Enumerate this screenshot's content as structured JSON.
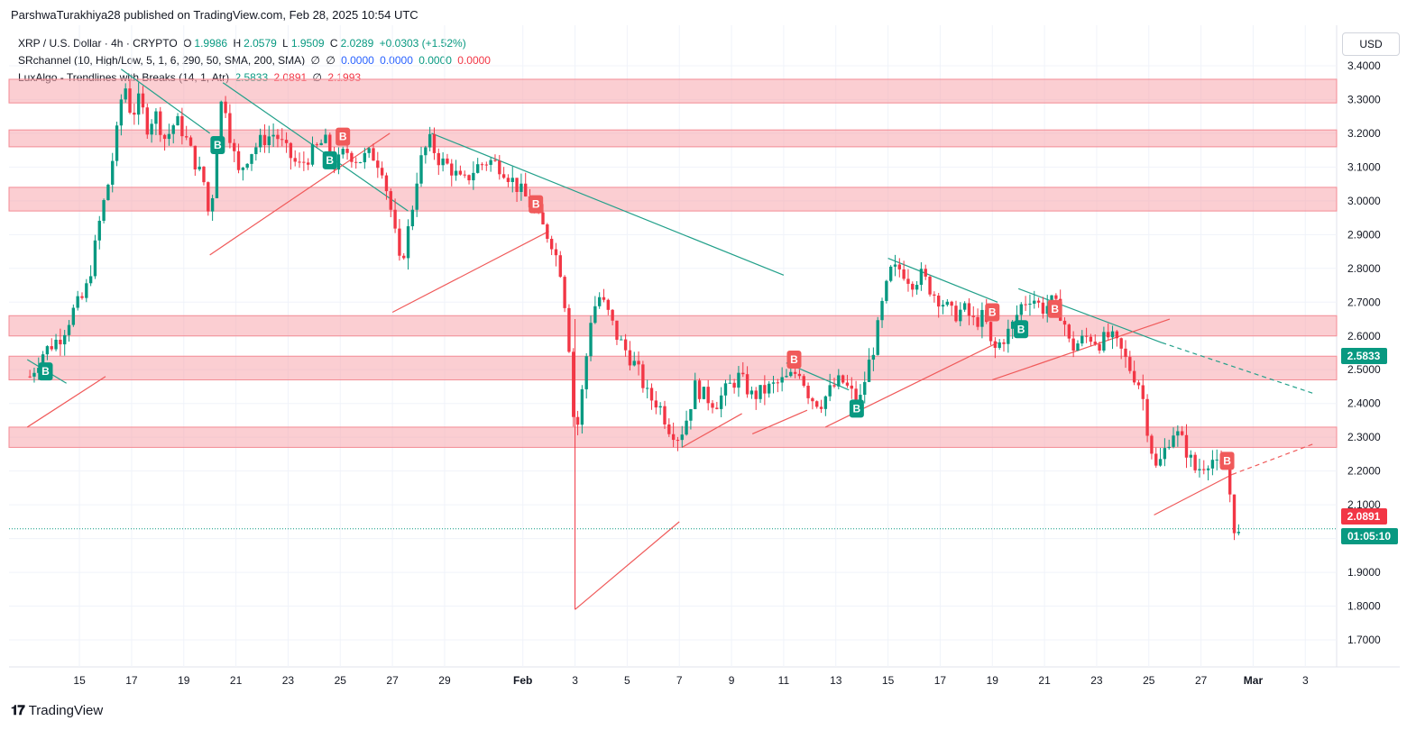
{
  "publisher_line": "ParshwaTurakhiya28 published on TradingView.com, Feb 28, 2025 10:54 UTC",
  "legend": {
    "symbol": "XRP / U.S. Dollar · 4h · CRYPTO",
    "o_label": "O",
    "o": "1.9986",
    "h_label": "H",
    "h": "2.0579",
    "l_label": "L",
    "l": "1.9509",
    "c_label": "C",
    "c": "2.0289",
    "change": "+0.0303 (+1.52%)",
    "sr_name": "SRchannel (10, High/Low, 5, 1, 6, 290, 50, SMA, 200, SMA)",
    "sr_n1": "∅",
    "sr_n2": "∅",
    "sr_v1": "0.0000",
    "sr_v2": "0.0000",
    "sr_v3": "0.0000",
    "sr_v4": "0.0000",
    "lux_name": "LuxAlgo - Trendlines with Breaks (14, 1, Atr)",
    "lux_v1": "2.5833",
    "lux_v2": "2.0891",
    "lux_n": "∅",
    "lux_v3": "2.1993"
  },
  "currency_button": "USD",
  "price_tags": {
    "tag1": "2.5833",
    "tag2": "2.0891",
    "countdown": "01:05:10"
  },
  "brand": "TradingView",
  "colors": {
    "up": "#089981",
    "down": "#f23645",
    "zone": "#f7a6ad",
    "zone_border": "#f38b94",
    "downtrend": "#22a08a",
    "uptrend": "#f05a5a",
    "grid": "#f0f3fa"
  },
  "chart_data": {
    "type": "candlestick",
    "title": "XRP / U.S. Dollar · 4h · CRYPTO",
    "ylim": [
      1.62,
      3.52
    ],
    "y_ticks": [
      "3.4000",
      "3.3000",
      "3.2000",
      "3.1000",
      "3.0000",
      "2.9000",
      "2.8000",
      "2.7000",
      "2.6000",
      "2.5000",
      "2.4000",
      "2.3000",
      "2.2000",
      "2.1000",
      "2.0000",
      "1.9000",
      "1.8000",
      "1.7000"
    ],
    "x_ticks": [
      {
        "label": "15",
        "day": 15
      },
      {
        "label": "17",
        "day": 17
      },
      {
        "label": "19",
        "day": 19
      },
      {
        "label": "21",
        "day": 21
      },
      {
        "label": "23",
        "day": 23
      },
      {
        "label": "25",
        "day": 25
      },
      {
        "label": "27",
        "day": 27
      },
      {
        "label": "29",
        "day": 29
      },
      {
        "label": "Feb",
        "day": 32
      },
      {
        "label": "3",
        "day": 34
      },
      {
        "label": "5",
        "day": 36
      },
      {
        "label": "7",
        "day": 38
      },
      {
        "label": "9",
        "day": 40
      },
      {
        "label": "11",
        "day": 42
      },
      {
        "label": "13",
        "day": 44
      },
      {
        "label": "15",
        "day": 46
      },
      {
        "label": "17",
        "day": 48
      },
      {
        "label": "19",
        "day": 50
      },
      {
        "label": "21",
        "day": 52
      },
      {
        "label": "23",
        "day": 54
      },
      {
        "label": "25",
        "day": 56
      },
      {
        "label": "27",
        "day": 58
      },
      {
        "label": "Mar",
        "day": 60
      },
      {
        "label": "3",
        "day": 62
      }
    ],
    "resistance_zones": [
      [
        3.29,
        3.36
      ],
      [
        3.16,
        3.21
      ],
      [
        2.97,
        3.04
      ],
      [
        2.6,
        2.66
      ],
      [
        2.47,
        2.54
      ],
      [
        2.27,
        2.33
      ]
    ],
    "close_price": 2.0289,
    "path": [
      [
        13.1,
        2.48
      ],
      [
        13.6,
        2.55
      ],
      [
        14.3,
        2.6
      ],
      [
        14.8,
        2.68
      ],
      [
        15.2,
        2.72
      ],
      [
        15.5,
        2.82
      ],
      [
        15.8,
        2.95
      ],
      [
        16.1,
        3.05
      ],
      [
        16.4,
        3.18
      ],
      [
        16.7,
        3.36
      ],
      [
        17.0,
        3.25
      ],
      [
        17.3,
        3.3
      ],
      [
        17.6,
        3.22
      ],
      [
        17.9,
        3.26
      ],
      [
        18.3,
        3.18
      ],
      [
        18.7,
        3.24
      ],
      [
        19.0,
        3.2
      ],
      [
        19.4,
        3.12
      ],
      [
        19.8,
        3.05
      ],
      [
        20.0,
        2.93
      ],
      [
        20.3,
        3.2
      ],
      [
        20.5,
        3.33
      ],
      [
        20.8,
        3.18
      ],
      [
        21.1,
        3.08
      ],
      [
        21.5,
        3.14
      ],
      [
        22.0,
        3.18
      ],
      [
        22.5,
        3.2
      ],
      [
        22.9,
        3.15
      ],
      [
        23.4,
        3.1
      ],
      [
        23.9,
        3.14
      ],
      [
        24.4,
        3.18
      ],
      [
        24.8,
        3.1
      ],
      [
        25.2,
        3.15
      ],
      [
        25.7,
        3.12
      ],
      [
        26.2,
        3.14
      ],
      [
        26.6,
        3.1
      ],
      [
        27.0,
        2.95
      ],
      [
        27.3,
        2.8
      ],
      [
        27.7,
        2.95
      ],
      [
        28.0,
        3.1
      ],
      [
        28.4,
        3.18
      ],
      [
        28.8,
        3.12
      ],
      [
        29.2,
        3.1
      ],
      [
        29.7,
        3.05
      ],
      [
        30.2,
        3.1
      ],
      [
        30.7,
        3.12
      ],
      [
        31.2,
        3.1
      ],
      [
        31.7,
        3.05
      ],
      [
        32.2,
        3.0
      ],
      [
        32.7,
        2.93
      ],
      [
        33.1,
        2.88
      ],
      [
        33.5,
        2.78
      ],
      [
        33.8,
        2.55
      ],
      [
        34.0,
        2.28
      ],
      [
        34.3,
        2.45
      ],
      [
        34.6,
        2.65
      ],
      [
        34.9,
        2.72
      ],
      [
        35.2,
        2.68
      ],
      [
        35.6,
        2.6
      ],
      [
        36.0,
        2.55
      ],
      [
        36.4,
        2.5
      ],
      [
        36.8,
        2.42
      ],
      [
        37.2,
        2.4
      ],
      [
        37.6,
        2.33
      ],
      [
        38.0,
        2.3
      ],
      [
        38.3,
        2.36
      ],
      [
        38.6,
        2.45
      ],
      [
        39.0,
        2.42
      ],
      [
        39.4,
        2.4
      ],
      [
        39.9,
        2.45
      ],
      [
        40.3,
        2.48
      ],
      [
        40.8,
        2.42
      ],
      [
        41.3,
        2.44
      ],
      [
        41.8,
        2.46
      ],
      [
        42.3,
        2.48
      ],
      [
        42.6,
        2.5
      ],
      [
        43.0,
        2.42
      ],
      [
        43.4,
        2.4
      ],
      [
        43.8,
        2.44
      ],
      [
        44.2,
        2.47
      ],
      [
        44.6,
        2.43
      ],
      [
        44.9,
        2.4
      ],
      [
        45.2,
        2.5
      ],
      [
        45.5,
        2.58
      ],
      [
        45.8,
        2.7
      ],
      [
        46.1,
        2.79
      ],
      [
        46.5,
        2.8
      ],
      [
        46.9,
        2.76
      ],
      [
        47.3,
        2.78
      ],
      [
        47.7,
        2.73
      ],
      [
        48.1,
        2.7
      ],
      [
        48.5,
        2.66
      ],
      [
        48.9,
        2.68
      ],
      [
        49.3,
        2.64
      ],
      [
        49.7,
        2.66
      ],
      [
        50.0,
        2.55
      ],
      [
        50.3,
        2.58
      ],
      [
        50.7,
        2.62
      ],
      [
        51.1,
        2.69
      ],
      [
        51.5,
        2.72
      ],
      [
        51.9,
        2.68
      ],
      [
        52.3,
        2.7
      ],
      [
        52.7,
        2.66
      ],
      [
        53.0,
        2.56
      ],
      [
        53.3,
        2.58
      ],
      [
        53.7,
        2.6
      ],
      [
        54.1,
        2.58
      ],
      [
        54.5,
        2.6
      ],
      [
        54.9,
        2.56
      ],
      [
        55.3,
        2.5
      ],
      [
        55.7,
        2.45
      ],
      [
        56.0,
        2.3
      ],
      [
        56.3,
        2.2
      ],
      [
        56.6,
        2.26
      ],
      [
        56.9,
        2.32
      ],
      [
        57.2,
        2.3
      ],
      [
        57.5,
        2.25
      ],
      [
        57.8,
        2.2
      ],
      [
        58.1,
        2.22
      ],
      [
        58.4,
        2.24
      ],
      [
        58.7,
        2.2
      ],
      [
        59.0,
        2.22
      ],
      [
        59.2,
        2.06
      ],
      [
        59.4,
        2.0
      ],
      [
        59.6,
        2.03
      ]
    ],
    "candle_step_days": 0.1667,
    "downtrend_lines": [
      [
        [
          13.0,
          2.53
        ],
        [
          14.5,
          2.46
        ]
      ],
      [
        [
          16.6,
          3.39
        ],
        [
          20.0,
          3.2
        ]
      ],
      [
        [
          20.5,
          3.35
        ],
        [
          27.6,
          2.97
        ]
      ],
      [
        [
          28.5,
          3.2
        ],
        [
          42.0,
          2.78
        ]
      ],
      [
        [
          46.0,
          2.83
        ],
        [
          50.2,
          2.7
        ]
      ],
      [
        [
          51.0,
          2.74
        ],
        [
          56.5,
          2.58
        ]
      ],
      [
        [
          42.1,
          2.52
        ],
        [
          44.5,
          2.44
        ]
      ]
    ],
    "uptrend_lines": [
      [
        [
          13.0,
          2.33
        ],
        [
          16.0,
          2.48
        ]
      ],
      [
        [
          20.0,
          2.84
        ],
        [
          26.9,
          3.2
        ]
      ],
      [
        [
          27.0,
          2.67
        ],
        [
          33.0,
          2.91
        ]
      ],
      [
        [
          34.0,
          1.79
        ],
        [
          38.0,
          2.05
        ]
      ],
      [
        [
          38.1,
          2.27
        ],
        [
          40.4,
          2.37
        ]
      ],
      [
        [
          40.8,
          2.31
        ],
        [
          42.9,
          2.38
        ]
      ],
      [
        [
          43.6,
          2.33
        ],
        [
          50.2,
          2.58
        ]
      ],
      [
        [
          50.0,
          2.47
        ],
        [
          56.8,
          2.65
        ]
      ],
      [
        [
          56.2,
          2.07
        ],
        [
          59.2,
          2.19
        ]
      ]
    ],
    "dashed_lines": [
      {
        "color": "downtrend",
        "from": [
          56.5,
          2.58
        ],
        "to": [
          62.3,
          2.43
        ]
      },
      {
        "color": "uptrend",
        "from": [
          59.2,
          2.19
        ],
        "to": [
          62.3,
          2.28
        ]
      }
    ],
    "signals": [
      {
        "kind": "buy",
        "label": "B",
        "day": 13.7,
        "price": 2.495
      },
      {
        "kind": "buy",
        "label": "B",
        "day": 20.3,
        "price": 3.165
      },
      {
        "kind": "buy",
        "label": "B",
        "day": 24.6,
        "price": 3.12
      },
      {
        "kind": "sell",
        "label": "B",
        "day": 25.1,
        "price": 3.19
      },
      {
        "kind": "sell",
        "label": "B",
        "day": 32.5,
        "price": 2.99
      },
      {
        "kind": "sell",
        "label": "B",
        "day": 42.4,
        "price": 2.53
      },
      {
        "kind": "buy",
        "label": "B",
        "day": 44.8,
        "price": 2.385
      },
      {
        "kind": "sell",
        "label": "B",
        "day": 50.0,
        "price": 2.67
      },
      {
        "kind": "buy",
        "label": "B",
        "day": 51.1,
        "price": 2.62
      },
      {
        "kind": "sell",
        "label": "B",
        "day": 52.4,
        "price": 2.68
      },
      {
        "kind": "sell",
        "label": "B",
        "day": 59.0,
        "price": 2.23
      }
    ]
  }
}
